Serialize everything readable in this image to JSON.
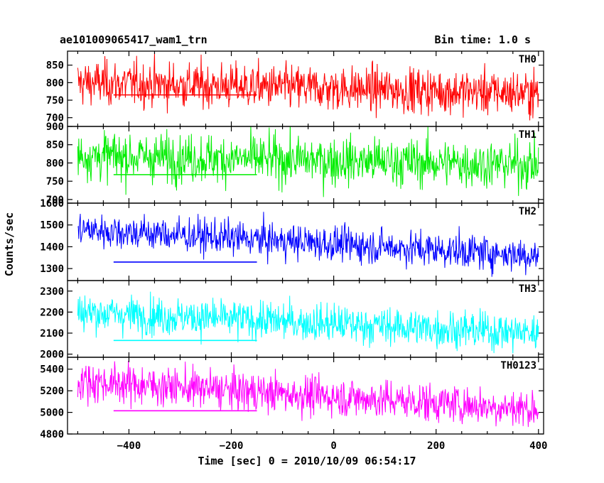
{
  "header": {
    "title": "ae101009065417_wam1_trn",
    "bin_time": "Bin time: 1.0 s"
  },
  "axes": {
    "xlabel": "Time [sec] 0 = 2010/10/09 06:54:17",
    "ylabel": "Counts/sec"
  },
  "chart_data": {
    "type": "line",
    "xlabel": "Time [sec] 0 = 2010/10/09 06:54:17",
    "ylabel": "Counts/sec",
    "xlim": [
      -520,
      410
    ],
    "x_ticks": [
      -400,
      -200,
      0,
      200,
      400
    ],
    "x_tick_labels": [
      "−400",
      "−200",
      "0",
      "200",
      "400"
    ],
    "time_range": [
      -500,
      400
    ],
    "bin_time_s": 1.0,
    "series": [
      {
        "name": "TH0",
        "color": "#ff0000",
        "ylim": [
          675,
          890
        ],
        "y_ticks": [
          700,
          750,
          800,
          850
        ],
        "y_tick_labels": [
          "700",
          "750",
          "800",
          "850"
        ],
        "mean_start": 800,
        "mean_end": 770,
        "noise_sd": 32,
        "mean_line": {
          "x_range": [
            -430,
            -150
          ],
          "y": 765
        }
      },
      {
        "name": "TH1",
        "color": "#00ee00",
        "ylim": [
          690,
          900
        ],
        "y_ticks": [
          700,
          750,
          800,
          850,
          900
        ],
        "y_tick_labels": [
          "700",
          "750",
          "800",
          "850",
          "900"
        ],
        "mean_start": 820,
        "mean_end": 795,
        "noise_sd": 33,
        "mean_line": {
          "x_range": [
            -430,
            -150
          ],
          "y": 768
        }
      },
      {
        "name": "TH2",
        "color": "#0000ff",
        "ylim": [
          1245,
          1600
        ],
        "y_ticks": [
          1300,
          1400,
          1500,
          1600
        ],
        "y_tick_labels": [
          "1300",
          "1400",
          "1500",
          "1600"
        ],
        "mean_start": 1480,
        "mean_end": 1360,
        "noise_sd": 40,
        "mean_line": {
          "x_range": [
            -430,
            -150
          ],
          "y": 1330
        }
      },
      {
        "name": "TH3",
        "color": "#00ffff",
        "ylim": [
          1985,
          2350
        ],
        "y_ticks": [
          2000,
          2100,
          2200,
          2300
        ],
        "y_tick_labels": [
          "2000",
          "2100",
          "2200",
          "2300"
        ],
        "mean_start": 2200,
        "mean_end": 2100,
        "noise_sd": 45,
        "mean_line": {
          "x_range": [
            -430,
            -150
          ],
          "y": 2065
        }
      },
      {
        "name": "TH0123",
        "color": "#ff00ff",
        "ylim": [
          4800,
          5510
        ],
        "y_ticks": [
          4800,
          5000,
          5200,
          5400
        ],
        "y_tick_labels": [
          "4800",
          "5000",
          "5200",
          "5400"
        ],
        "mean_start": 5290,
        "mean_end": 5030,
        "noise_sd": 90,
        "mean_line": {
          "x_range": [
            -430,
            -150
          ],
          "y": 5015
        }
      }
    ]
  }
}
